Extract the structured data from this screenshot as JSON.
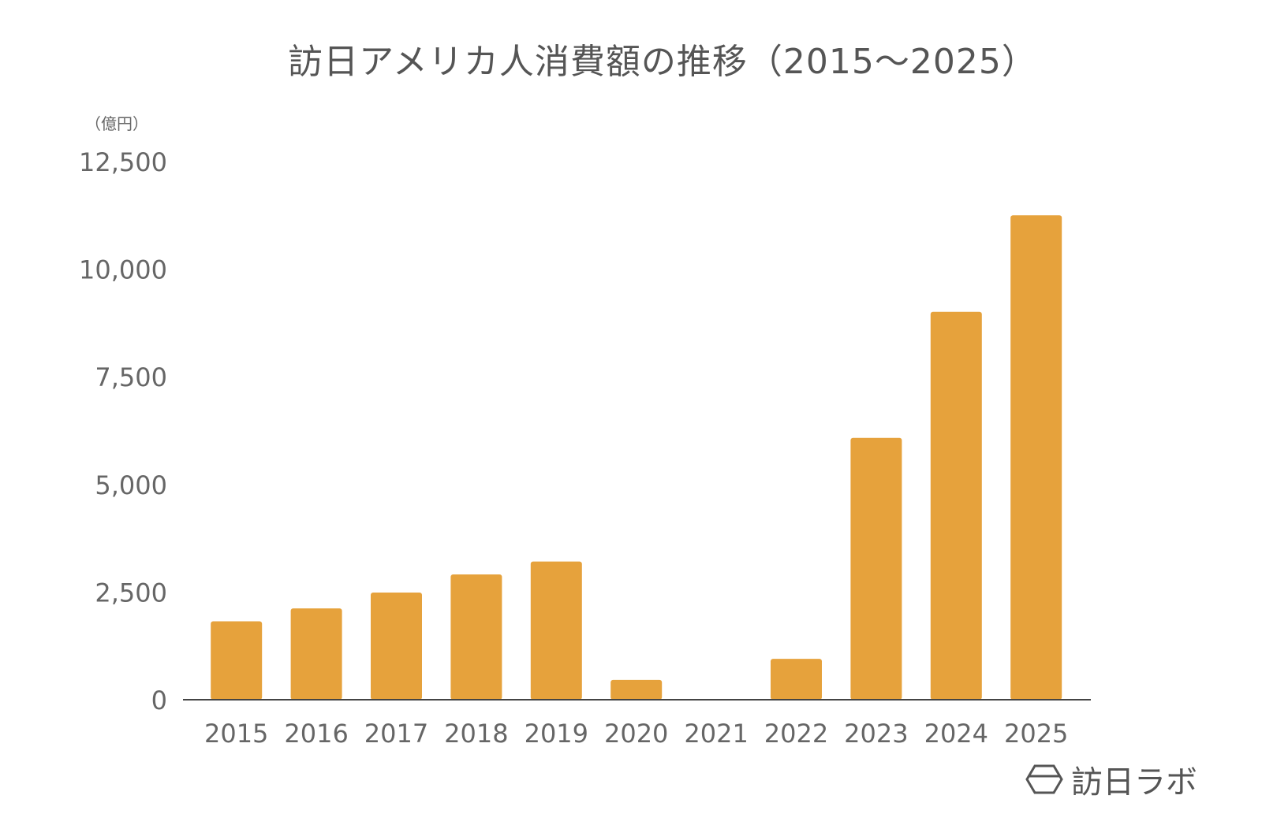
{
  "chart_data": {
    "type": "bar",
    "title": "訪日アメリカ人消費額の推移（2015〜2025）",
    "ylabel": "（億円）",
    "xlabel": "",
    "categories": [
      "2015",
      "2016",
      "2017",
      "2018",
      "2019",
      "2020",
      "2021",
      "2022",
      "2023",
      "2024",
      "2025"
    ],
    "values": [
      1820,
      2120,
      2490,
      2910,
      3210,
      460,
      0,
      950,
      6080,
      9010,
      11250
    ],
    "ylim": [
      0,
      12500
    ],
    "yticks": [
      0,
      2500,
      5000,
      7500,
      10000,
      12500
    ],
    "ytick_labels": [
      "0",
      "2,500",
      "5,000",
      "7,500",
      "10,000",
      "12,500"
    ],
    "grid": false,
    "legend": "none",
    "bar_color": "#E6A23C",
    "axis_color": "#444444",
    "text_color": "#666666"
  },
  "logo": {
    "text": "訪日ラボ",
    "icon": "hexagon-logo-icon"
  }
}
